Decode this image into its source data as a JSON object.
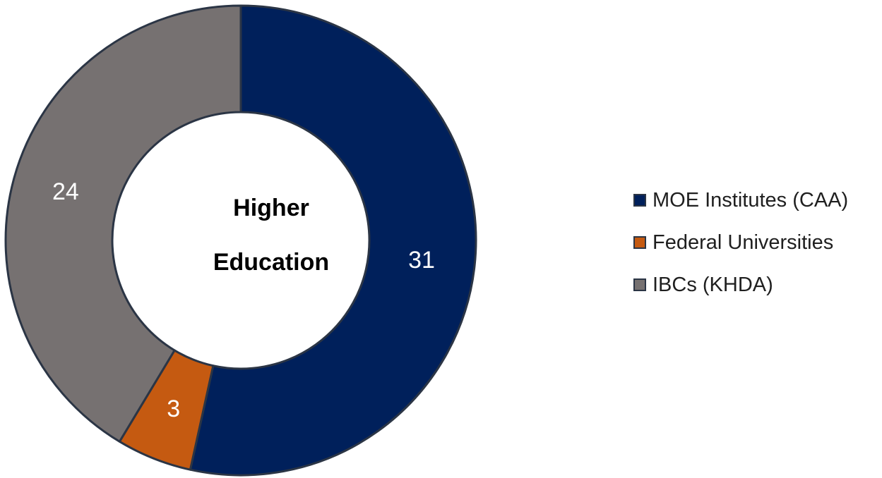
{
  "chart_data": {
    "type": "pie",
    "variant": "donut",
    "center_text": [
      "Higher",
      "Education"
    ],
    "categories": [
      "MOE Institutes (CAA)",
      "Federal Universities",
      "IBCs (KHDA)"
    ],
    "values": [
      31,
      3,
      24
    ],
    "value_labels": [
      "31",
      "3",
      "24"
    ],
    "colors": [
      "#00205b",
      "#c55a11",
      "#767171"
    ],
    "legend_position": "right",
    "start_angle": "top",
    "direction": "clockwise"
  }
}
